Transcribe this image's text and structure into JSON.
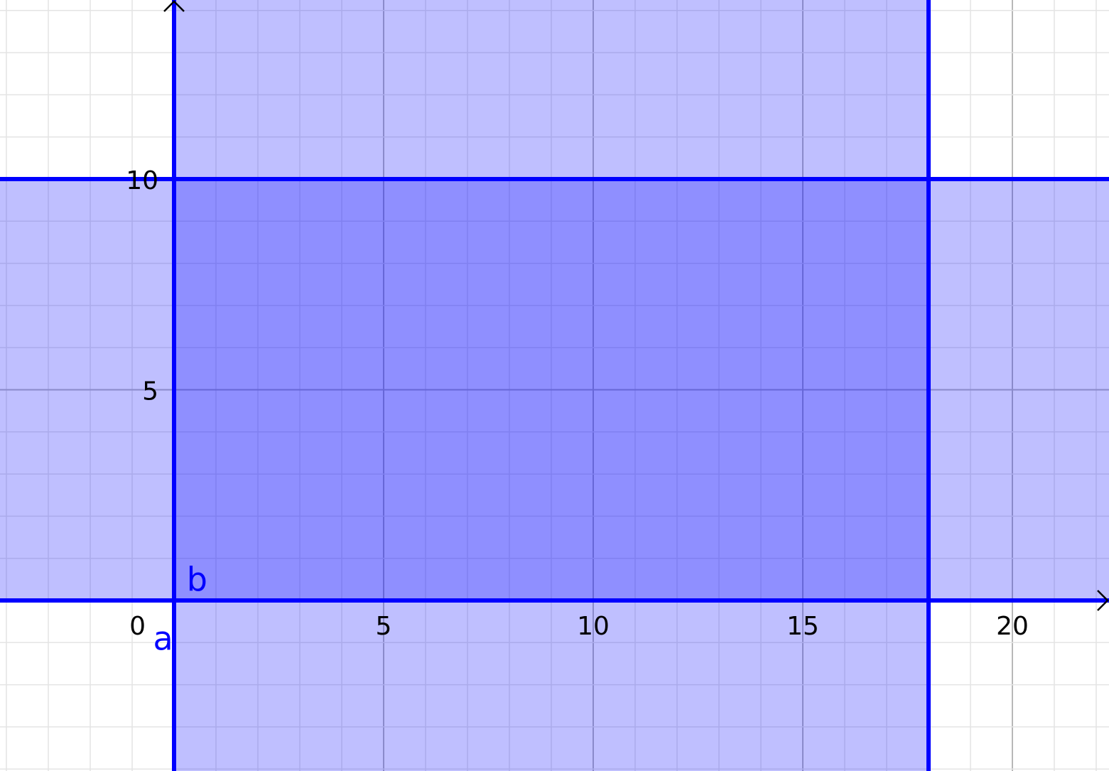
{
  "chart_data": {
    "type": "region",
    "x_range": [
      -4.15,
      22.3
    ],
    "y_range": [
      -4.05,
      14.25
    ],
    "grid": true,
    "minor_grid_step": 1,
    "major_grid_step": 5,
    "x_ticks": [
      "0",
      "5",
      "10",
      "15",
      "20"
    ],
    "x_tick_values": [
      0,
      5,
      10,
      15,
      20
    ],
    "y_ticks": [
      "5",
      "10"
    ],
    "y_tick_values": [
      5,
      10
    ],
    "regions": [
      {
        "name": "a",
        "inequality": "0 ≤ x ≤ 18",
        "bounds": {
          "x": [
            0,
            18
          ]
        },
        "color": "#0000ff"
      },
      {
        "name": "b",
        "inequality": "0 ≤ y ≤ 10",
        "bounds": {
          "y": [
            0,
            10
          ]
        },
        "color": "#0000ff"
      }
    ],
    "labels": [
      {
        "text": "a",
        "x": -0.5,
        "y": -0.9
      },
      {
        "text": "b",
        "x": 0.3,
        "y": 0.5
      }
    ]
  }
}
